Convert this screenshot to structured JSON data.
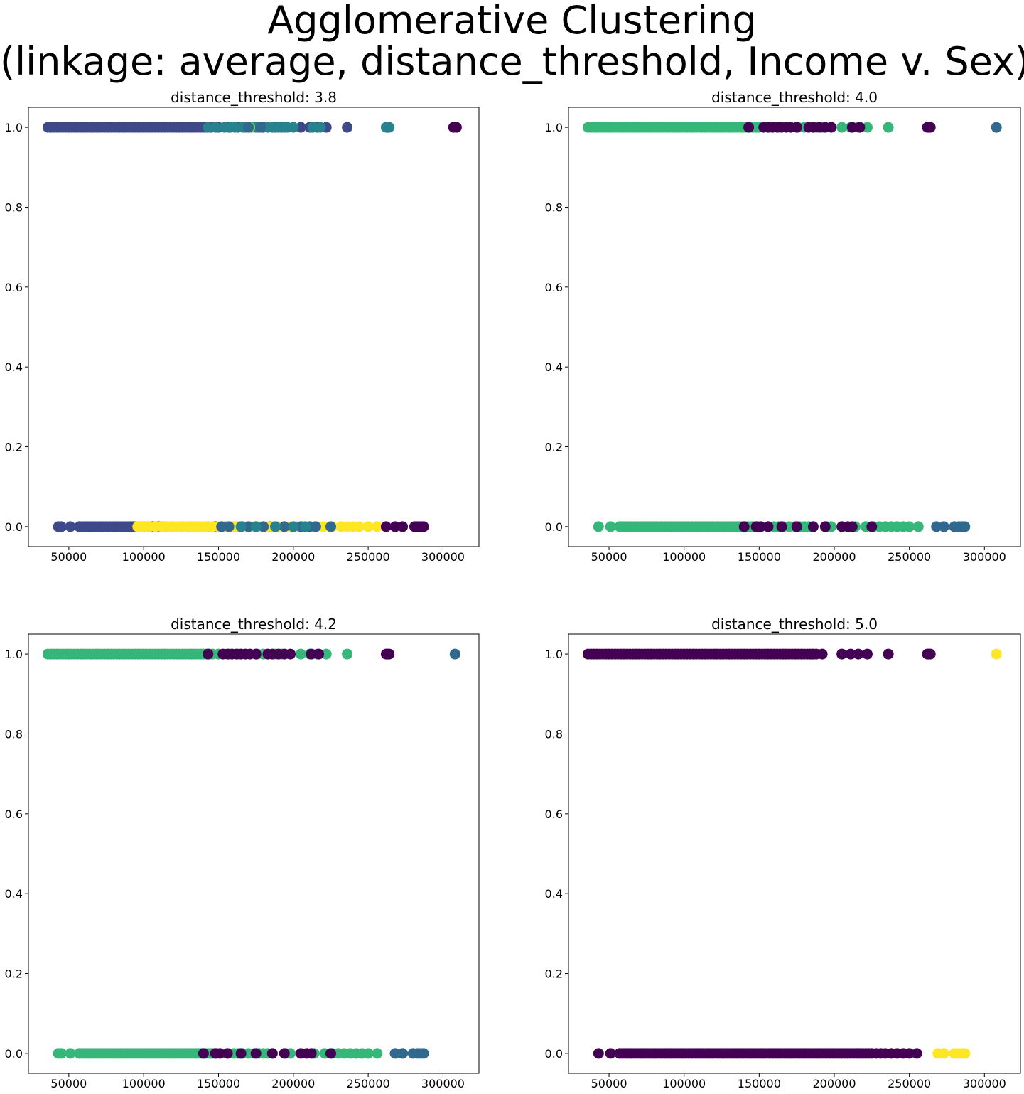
{
  "figure": {
    "title_line1": "Agglomerative Clustering",
    "title_line2": "(linkage: average, distance_threshold, Income v. Sex)"
  },
  "colors": {
    "c0": "#440154",
    "c1": "#3e4989",
    "c2": "#31688e",
    "c3": "#26828e",
    "c4": "#35b779",
    "c5": "#6ece58",
    "c6": "#fde725"
  },
  "chart_data": [
    {
      "type": "scatter",
      "title": "distance_threshold: 3.8",
      "xlim": [
        23000,
        324000
      ],
      "ylim": [
        -0.05,
        1.05
      ],
      "xticks": [
        50000,
        100000,
        150000,
        200000,
        250000,
        300000
      ],
      "yticks": [
        0.0,
        0.2,
        0.4,
        0.6,
        0.8,
        1.0
      ],
      "ytick_labels": [
        "0.0",
        "0.2",
        "0.4",
        "0.6",
        "0.8",
        "1.0"
      ],
      "series": [
        {
          "color": "c1",
          "y": 1,
          "x": [
            36000,
            38000,
            40000,
            42000,
            44000,
            46000,
            48000,
            50000,
            52000,
            54000,
            56000,
            58000,
            60000,
            62000,
            64000,
            66000,
            68000,
            70000,
            72000,
            74000,
            76000,
            78000,
            80000,
            82000,
            84000,
            86000,
            88000,
            90000,
            92000,
            94000,
            96000,
            98000,
            100000,
            102000,
            104000,
            106000,
            108000,
            110000,
            112000,
            114000,
            116000,
            118000,
            120000,
            122000,
            124000,
            126000,
            128000,
            130000,
            132000,
            134000,
            136000,
            138000,
            140000,
            142000,
            145000,
            150000,
            157000,
            163000,
            176000,
            180000,
            188000,
            192000,
            205000,
            211000,
            216000,
            222000,
            236000
          ]
        },
        {
          "color": "c3",
          "y": 1,
          "x": [
            143000,
            148000,
            154000,
            158000,
            161000,
            166000,
            168000,
            172000,
            175000,
            183000,
            186000,
            190000,
            194000,
            196000,
            200000,
            213000,
            218000,
            262000,
            263000,
            264000
          ]
        },
        {
          "color": "c5",
          "y": 1,
          "x": [
            171000
          ]
        },
        {
          "color": "c2",
          "y": 1,
          "x": [
            170000,
            178000
          ]
        },
        {
          "color": "c0",
          "y": 1,
          "x": [
            307000,
            309000
          ]
        },
        {
          "color": "c1",
          "y": 0,
          "x": [
            43000,
            45000,
            51000,
            57000,
            59000,
            61000,
            63000,
            65000,
            67000,
            69000,
            71000,
            73000,
            75000,
            77000,
            79000,
            81000,
            83000,
            85000,
            87000,
            89000,
            91000,
            93000,
            95000,
            97000,
            99000,
            101000,
            103000,
            106000,
            110000,
            114000,
            119000,
            126000,
            131000,
            136000,
            143000,
            148000,
            155000,
            162000,
            166000,
            184000
          ]
        },
        {
          "color": "c6",
          "y": 0,
          "x": [
            96000,
            98000,
            100000,
            102000,
            104000,
            108000,
            112000,
            114000,
            116000,
            118000,
            120000,
            122000,
            124000,
            126000,
            128000,
            130000,
            132000,
            134000,
            136000,
            138000,
            140000,
            142000,
            144000,
            146000,
            150000,
            153000,
            156000,
            158000,
            160000,
            162000,
            165000,
            168000,
            171000,
            174000,
            177000,
            180000,
            183000,
            186000,
            190000,
            194000,
            198000,
            202000,
            206000,
            210000,
            214000,
            220000,
            226000,
            232000,
            236000,
            240000,
            244000,
            250000,
            256000
          ]
        },
        {
          "color": "c2",
          "y": 0,
          "x": [
            152000,
            157000,
            170000,
            180000,
            194000,
            205000,
            211000,
            215000,
            225000
          ]
        },
        {
          "color": "c3",
          "y": 0,
          "x": [
            165000,
            175000,
            188000,
            200000,
            208000
          ]
        },
        {
          "color": "c0",
          "y": 0,
          "x": [
            262000,
            268000,
            273000,
            281000,
            283000,
            285000,
            287000
          ]
        }
      ]
    },
    {
      "type": "scatter",
      "title": "distance_threshold: 4.0",
      "xlim": [
        23000,
        324000
      ],
      "ylim": [
        -0.05,
        1.05
      ],
      "xticks": [
        50000,
        100000,
        150000,
        200000,
        250000,
        300000
      ],
      "yticks": [
        0.0,
        0.2,
        0.4,
        0.6,
        0.8,
        1.0
      ],
      "ytick_labels": [
        "0.0",
        "0.2",
        "0.4",
        "0.6",
        "0.8",
        "1.0"
      ],
      "series": [
        {
          "color": "c4",
          "y": 1,
          "x": [
            36000,
            38000,
            40000,
            42000,
            44000,
            46000,
            48000,
            50000,
            52000,
            54000,
            56000,
            58000,
            60000,
            62000,
            64000,
            66000,
            68000,
            70000,
            72000,
            74000,
            76000,
            78000,
            80000,
            82000,
            84000,
            86000,
            88000,
            90000,
            92000,
            94000,
            96000,
            98000,
            100000,
            102000,
            104000,
            106000,
            108000,
            110000,
            112000,
            114000,
            116000,
            118000,
            120000,
            122000,
            124000,
            126000,
            128000,
            130000,
            132000,
            134000,
            136000,
            138000,
            140000,
            142000,
            144000,
            146000,
            148000,
            150000,
            157000,
            163000,
            176000,
            180000,
            188000,
            192000,
            205000,
            211000,
            216000,
            222000,
            236000
          ]
        },
        {
          "color": "c0",
          "y": 1,
          "x": [
            143000,
            153000,
            156000,
            159000,
            162000,
            165000,
            168000,
            171000,
            175000,
            183000,
            186000,
            190000,
            194000,
            198000,
            212000,
            217000,
            262000,
            263000,
            264000
          ]
        },
        {
          "color": "c2",
          "y": 1,
          "x": [
            308000
          ]
        },
        {
          "color": "c4",
          "y": 0,
          "x": [
            43000,
            51000,
            57000,
            59000,
            61000,
            63000,
            65000,
            67000,
            69000,
            71000,
            73000,
            75000,
            77000,
            79000,
            81000,
            83000,
            85000,
            87000,
            89000,
            91000,
            93000,
            95000,
            97000,
            99000,
            101000,
            103000,
            105000,
            107000,
            109000,
            111000,
            113000,
            115000,
            117000,
            119000,
            121000,
            123000,
            125000,
            127000,
            129000,
            131000,
            133000,
            135000,
            137000,
            139000,
            141000,
            143000,
            145000,
            147000,
            149000,
            156000,
            160000,
            163000,
            166000,
            170000,
            174000,
            177000,
            180000,
            183000,
            186000,
            195000,
            198000,
            214000,
            221000,
            226000,
            230000,
            234000,
            238000,
            242000,
            246000,
            250000,
            256000
          ]
        },
        {
          "color": "c0",
          "y": 0,
          "x": [
            140000,
            148000,
            151000,
            156000,
            165000,
            175000,
            186000,
            194000,
            205000,
            209000,
            212000,
            225000
          ]
        },
        {
          "color": "c2",
          "y": 0,
          "x": [
            268000,
            273000,
            280000,
            283000,
            285000,
            287000
          ]
        }
      ]
    },
    {
      "type": "scatter",
      "title": "distance_threshold: 4.2",
      "xlim": [
        23000,
        324000
      ],
      "ylim": [
        -0.05,
        1.05
      ],
      "xticks": [
        50000,
        100000,
        150000,
        200000,
        250000,
        300000
      ],
      "yticks": [
        0.0,
        0.2,
        0.4,
        0.6,
        0.8,
        1.0
      ],
      "ytick_labels": [
        "0.0",
        "0.2",
        "0.4",
        "0.6",
        "0.8",
        "1.0"
      ],
      "series": [
        {
          "color": "c4",
          "y": 1,
          "x": [
            36000,
            38000,
            40000,
            42000,
            44000,
            46000,
            48000,
            50000,
            52000,
            54000,
            56000,
            58000,
            60000,
            62000,
            64000,
            66000,
            68000,
            70000,
            72000,
            74000,
            76000,
            78000,
            80000,
            82000,
            84000,
            86000,
            88000,
            90000,
            92000,
            94000,
            96000,
            98000,
            100000,
            102000,
            104000,
            106000,
            108000,
            110000,
            112000,
            114000,
            116000,
            118000,
            120000,
            122000,
            124000,
            126000,
            128000,
            130000,
            132000,
            134000,
            136000,
            138000,
            140000,
            142000,
            144000,
            146000,
            150000,
            157000,
            163000,
            176000,
            180000,
            188000,
            192000,
            205000,
            211000,
            216000,
            222000,
            236000
          ]
        },
        {
          "color": "c0",
          "y": 1,
          "x": [
            143000,
            153000,
            156000,
            159000,
            162000,
            165000,
            168000,
            171000,
            175000,
            183000,
            186000,
            190000,
            194000,
            198000,
            212000,
            217000,
            262000,
            263000,
            264000
          ]
        },
        {
          "color": "c2",
          "y": 1,
          "x": [
            308000
          ]
        },
        {
          "color": "c4",
          "y": 0,
          "x": [
            43000,
            45000,
            51000,
            57000,
            59000,
            61000,
            63000,
            65000,
            67000,
            69000,
            71000,
            73000,
            75000,
            77000,
            79000,
            81000,
            83000,
            85000,
            87000,
            89000,
            91000,
            93000,
            95000,
            97000,
            99000,
            101000,
            103000,
            105000,
            107000,
            109000,
            111000,
            113000,
            115000,
            117000,
            119000,
            121000,
            123000,
            125000,
            127000,
            129000,
            131000,
            133000,
            135000,
            137000,
            139000,
            141000,
            143000,
            145000,
            147000,
            149000,
            156000,
            160000,
            163000,
            166000,
            170000,
            174000,
            177000,
            180000,
            183000,
            186000,
            195000,
            198000,
            214000,
            221000,
            226000,
            230000,
            234000,
            238000,
            242000,
            246000,
            250000,
            256000
          ]
        },
        {
          "color": "c0",
          "y": 0,
          "x": [
            140000,
            148000,
            151000,
            156000,
            165000,
            175000,
            186000,
            194000,
            205000,
            209000,
            212000,
            225000
          ]
        },
        {
          "color": "c2",
          "y": 0,
          "x": [
            268000,
            273000,
            280000,
            283000,
            285000,
            287000
          ]
        }
      ]
    },
    {
      "type": "scatter",
      "title": "distance_threshold: 5.0",
      "xlim": [
        23000,
        324000
      ],
      "ylim": [
        -0.05,
        1.05
      ],
      "xticks": [
        50000,
        100000,
        150000,
        200000,
        250000,
        300000
      ],
      "yticks": [
        0.0,
        0.2,
        0.4,
        0.6,
        0.8,
        1.0
      ],
      "ytick_labels": [
        "0.0",
        "0.2",
        "0.4",
        "0.6",
        "0.8",
        "1.0"
      ],
      "series": [
        {
          "color": "c0",
          "y": 1,
          "x": [
            36000,
            38000,
            40000,
            42000,
            44000,
            46000,
            48000,
            50000,
            52000,
            54000,
            56000,
            58000,
            60000,
            62000,
            64000,
            66000,
            68000,
            70000,
            72000,
            74000,
            76000,
            78000,
            80000,
            82000,
            84000,
            86000,
            88000,
            90000,
            92000,
            94000,
            96000,
            98000,
            100000,
            102000,
            104000,
            106000,
            108000,
            110000,
            112000,
            114000,
            116000,
            118000,
            120000,
            122000,
            124000,
            126000,
            128000,
            130000,
            132000,
            134000,
            136000,
            138000,
            140000,
            142000,
            144000,
            146000,
            148000,
            150000,
            152000,
            154000,
            156000,
            158000,
            160000,
            162000,
            164000,
            166000,
            168000,
            170000,
            172000,
            174000,
            176000,
            178000,
            180000,
            182000,
            184000,
            186000,
            188000,
            192000,
            205000,
            211000,
            216000,
            222000,
            236000,
            262000,
            263000,
            264000
          ]
        },
        {
          "color": "c6",
          "y": 1,
          "x": [
            308000
          ]
        },
        {
          "color": "c0",
          "y": 0,
          "x": [
            43000,
            51000,
            57000,
            59000,
            61000,
            63000,
            65000,
            67000,
            69000,
            71000,
            73000,
            75000,
            77000,
            79000,
            81000,
            83000,
            85000,
            87000,
            89000,
            91000,
            93000,
            95000,
            97000,
            99000,
            101000,
            103000,
            105000,
            107000,
            109000,
            111000,
            113000,
            115000,
            117000,
            119000,
            121000,
            123000,
            125000,
            127000,
            129000,
            131000,
            133000,
            135000,
            137000,
            139000,
            141000,
            143000,
            145000,
            147000,
            149000,
            151000,
            153000,
            155000,
            157000,
            159000,
            161000,
            163000,
            165000,
            167000,
            169000,
            171000,
            173000,
            175000,
            177000,
            179000,
            181000,
            183000,
            185000,
            187000,
            189000,
            191000,
            193000,
            195000,
            197000,
            199000,
            201000,
            203000,
            205000,
            207000,
            209000,
            211000,
            213000,
            215000,
            217000,
            219000,
            221000,
            223000,
            225000,
            228000,
            231000,
            234000,
            238000,
            242000,
            246000,
            250000,
            255000
          ]
        },
        {
          "color": "c6",
          "y": 0,
          "x": [
            269000,
            273000,
            280000,
            283000,
            285000,
            287000
          ]
        }
      ]
    }
  ]
}
